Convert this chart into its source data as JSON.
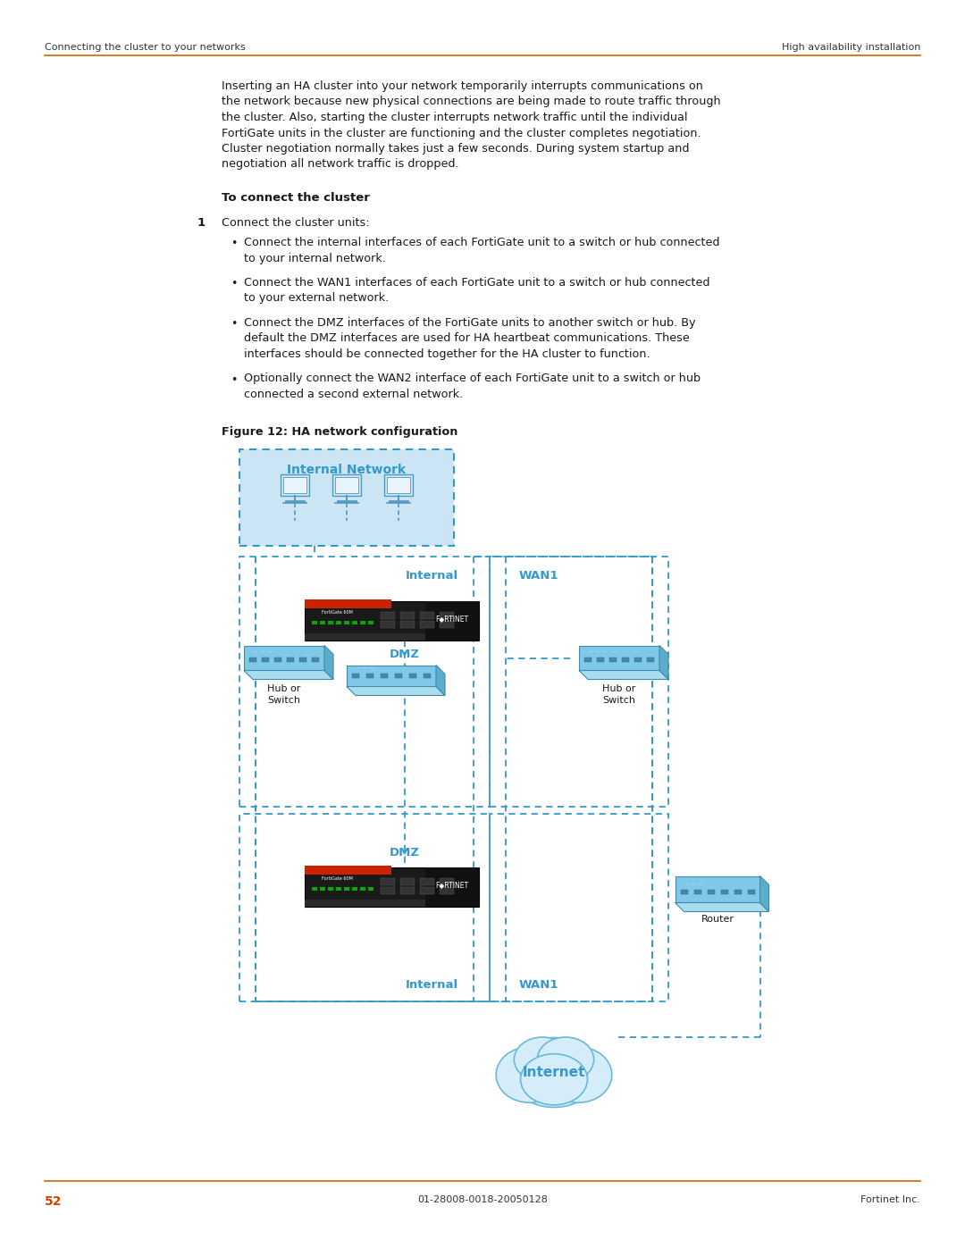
{
  "bg_color": "#ffffff",
  "header_left": "Connecting the cluster to your networks",
  "header_right": "High availability installation",
  "header_line_color": "#cc6600",
  "footer_page": "52",
  "footer_center": "01-28008-0018-20050128",
  "footer_right": "Fortinet Inc.",
  "footer_page_color": "#cc4400",
  "body_lines": [
    "Inserting an HA cluster into your network temporarily interrupts communications on",
    "the network because new physical connections are being made to route traffic through",
    "the cluster. Also, starting the cluster interrupts network traffic until the individual",
    "FortiGate units in the cluster are functioning and the cluster completes negotiation.",
    "Cluster negotiation normally takes just a few seconds. During system startup and",
    "negotiation all network traffic is dropped."
  ],
  "bold_heading": "To connect the cluster",
  "step_text": "Connect the cluster units:",
  "bullet_lines": [
    [
      "Connect the internal interfaces of each FortiGate unit to a switch or hub connected",
      "to your internal network."
    ],
    [
      "Connect the WAN1 interfaces of each FortiGate unit to a switch or hub connected",
      "to your external network."
    ],
    [
      "Connect the DMZ interfaces of the FortiGate units to another switch or hub. By",
      "default the DMZ interfaces are used for HA heartbeat communications. These",
      "interfaces should be connected together for the HA cluster to function."
    ],
    [
      "Optionally connect the WAN2 interface of each FortiGate unit to a switch or hub",
      "connected a second external network."
    ]
  ],
  "fig_caption": "Figure 12: HA network configuration",
  "lbl_internal_network": "Internal Network",
  "lbl_internal": "Internal",
  "lbl_wan1": "WAN1",
  "lbl_dmz": "DMZ",
  "lbl_hub_switch": "Hub or\nSwitch",
  "lbl_router": "Router",
  "lbl_internet": "Internet",
  "blue": "#3399cc",
  "light_blue_fill": "#cce5f5",
  "dark_text": "#1a1a1a",
  "orange_line": "#cc6600"
}
